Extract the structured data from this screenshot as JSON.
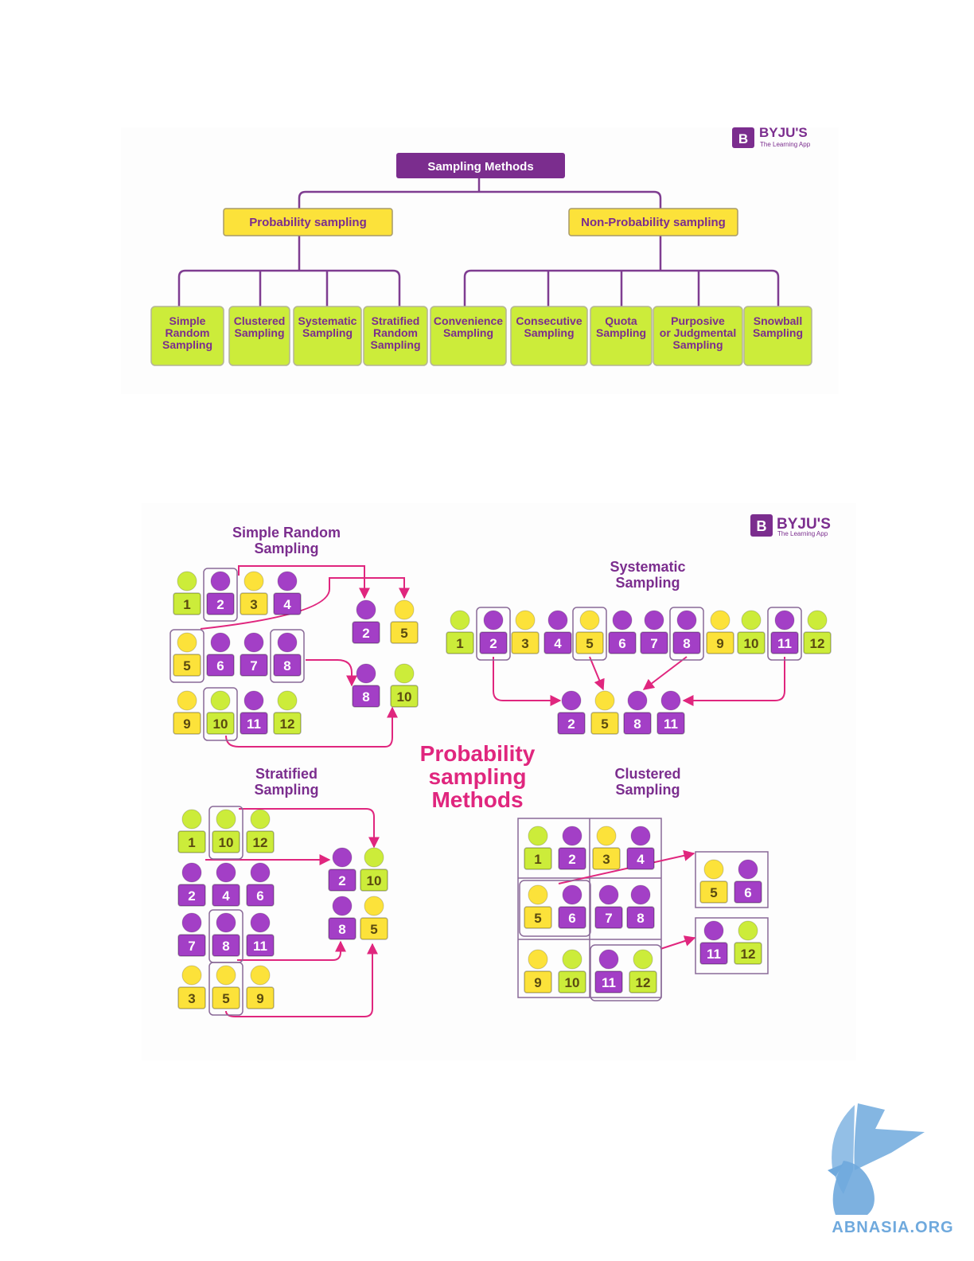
{
  "brand": {
    "name": "BYJU'S",
    "tagline": "The Learning App",
    "mark": "B"
  },
  "colors": {
    "purple": "#a33fc6",
    "dark_purple": "#7b2d8e",
    "lime": "#ccec3a",
    "yellow": "#fce23a",
    "magenta": "#e0267e",
    "line": "#7f3d91",
    "border": "#8a6a98",
    "watermark": "#6fa9dd"
  },
  "tree": {
    "root": "Sampling Methods",
    "branches": [
      {
        "label": "Probability sampling",
        "children": [
          [
            "Simple",
            "Random",
            "Sampling"
          ],
          [
            "Clustered",
            "Sampling"
          ],
          [
            "Systematic",
            "Sampling"
          ],
          [
            "Stratified",
            "Random",
            "Sampling"
          ]
        ]
      },
      {
        "label": "Non-Probability sampling",
        "children": [
          [
            "Convenience",
            "Sampling"
          ],
          [
            "Consecutive",
            "Sampling"
          ],
          [
            "Quota",
            "Sampling"
          ],
          [
            "Purposive",
            "or Judgmental",
            "Sampling"
          ],
          [
            "Snowball",
            "Sampling"
          ]
        ]
      }
    ]
  },
  "infographic": {
    "center_title": [
      "Probability",
      "sampling",
      "Methods"
    ],
    "simple_random": {
      "title": [
        "Simple Random",
        "Sampling"
      ],
      "rows": [
        [
          1,
          2,
          3,
          4
        ],
        [
          5,
          6,
          7,
          8
        ],
        [
          9,
          10,
          11,
          12
        ]
      ],
      "selected": [
        2,
        5,
        8,
        10
      ]
    },
    "systematic": {
      "title": [
        "Systematic",
        "Sampling"
      ],
      "people": [
        1,
        2,
        3,
        4,
        5,
        6,
        7,
        8,
        9,
        10,
        11,
        12
      ],
      "selected": [
        2,
        5,
        8,
        11
      ]
    },
    "stratified": {
      "title": [
        "Stratified",
        "Sampling"
      ],
      "strata": [
        [
          1,
          10,
          12
        ],
        [
          2,
          4,
          6
        ],
        [
          7,
          8,
          11
        ],
        [
          3,
          5,
          9
        ]
      ],
      "selected": [
        [
          2,
          10
        ],
        [
          8,
          5
        ]
      ]
    },
    "clustered": {
      "title": [
        "Clustered",
        "Sampling"
      ],
      "clusters": [
        [
          1,
          2
        ],
        [
          3,
          4
        ],
        [
          5,
          6
        ],
        [
          7,
          8
        ],
        [
          9,
          10
        ],
        [
          11,
          12
        ]
      ],
      "selected": [
        [
          5,
          6
        ],
        [
          11,
          12
        ]
      ]
    },
    "person_colors": {
      "1": "lime",
      "2": "purple",
      "3": "yellow",
      "4": "purple",
      "5": "yellow",
      "6": "purple",
      "7": "purple",
      "8": "purple",
      "9": "yellow",
      "10": "lime",
      "11": "purple",
      "12": "lime"
    }
  },
  "watermark": {
    "text": "ABNASIA.ORG"
  }
}
